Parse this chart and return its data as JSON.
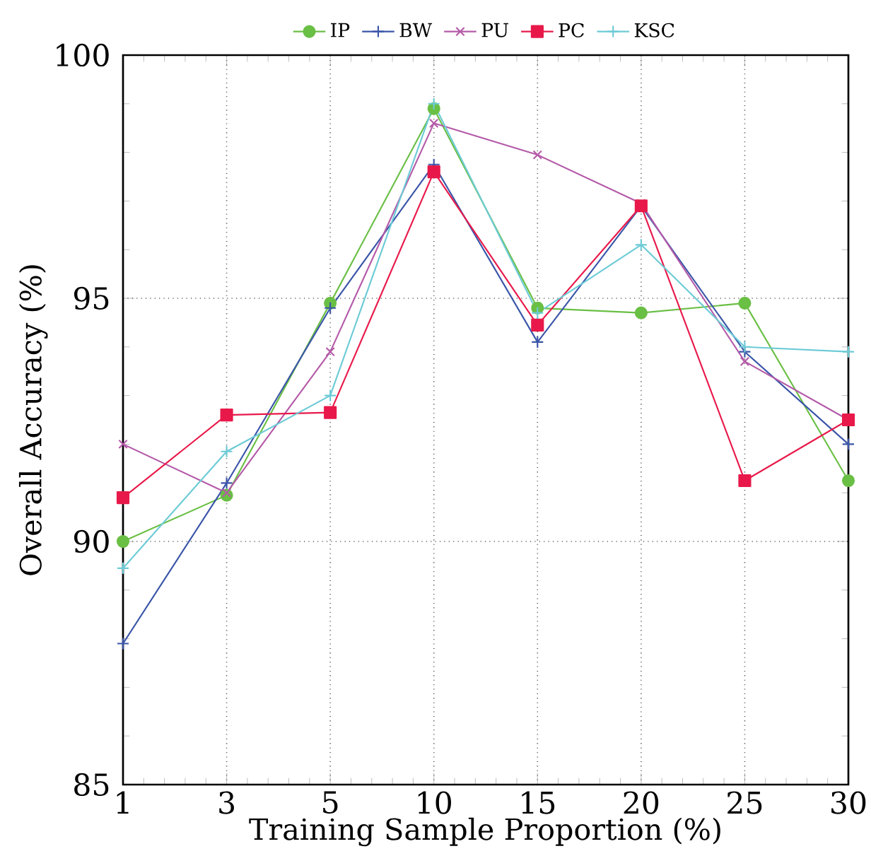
{
  "chart_data": {
    "type": "line",
    "xlabel": "Training Sample Proportion (%)",
    "ylabel": "Overall Accuracy (%)",
    "categories": [
      "1",
      "3",
      "5",
      "10",
      "15",
      "20",
      "25",
      "30"
    ],
    "ylim": [
      85,
      100
    ],
    "yticks": [
      85,
      90,
      95,
      100
    ],
    "grid": true,
    "legend": "top",
    "series": [
      {
        "name": "IP",
        "color": "#6abf45",
        "marker": "circle",
        "values": [
          90.0,
          90.95,
          94.9,
          98.9,
          94.8,
          94.7,
          94.9,
          91.25
        ]
      },
      {
        "name": "BW",
        "color": "#3a55a8",
        "marker": "plus",
        "values": [
          87.9,
          91.2,
          94.8,
          97.75,
          94.1,
          96.9,
          93.9,
          92.0
        ]
      },
      {
        "name": "PU",
        "color": "#b45aa8",
        "marker": "cross",
        "values": [
          92.0,
          91.0,
          93.9,
          98.6,
          97.95,
          96.95,
          93.7,
          92.5
        ]
      },
      {
        "name": "PC",
        "color": "#e8194a",
        "marker": "square",
        "values": [
          90.9,
          92.6,
          92.65,
          97.6,
          94.45,
          96.9,
          91.25,
          92.5
        ]
      },
      {
        "name": "KSC",
        "color": "#6ccbd6",
        "marker": "plus",
        "values": [
          89.45,
          91.85,
          93.0,
          99.0,
          94.7,
          96.1,
          94.0,
          93.9
        ]
      }
    ]
  }
}
